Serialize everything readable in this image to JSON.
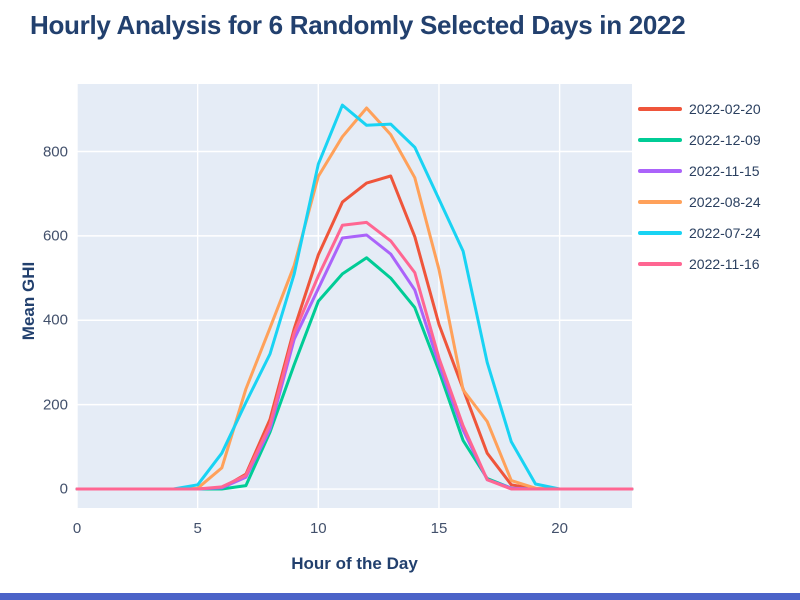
{
  "title": "Hourly Analysis for 6 Randomly Selected Days in 2022",
  "axes": {
    "xlabel": "Hour of the Day",
    "ylabel": "Mean GHI"
  },
  "chart_data": {
    "type": "line",
    "title": "Hourly Analysis for 6 Randomly Selected Days in 2022",
    "xlabel": "Hour of the Day",
    "ylabel": "Mean GHI",
    "x": [
      0,
      1,
      2,
      3,
      4,
      5,
      6,
      7,
      8,
      9,
      10,
      11,
      12,
      13,
      14,
      15,
      16,
      17,
      18,
      19,
      20,
      21,
      22,
      23
    ],
    "xticks": [
      0,
      5,
      10,
      15,
      20
    ],
    "yticks": [
      0,
      200,
      400,
      600,
      800
    ],
    "xlim": [
      0,
      23
    ],
    "ylim": [
      -45,
      960
    ],
    "grid": true,
    "legend_position": "right",
    "plot_bg": "#E5ECF6",
    "grid_color": "#FFFFFF",
    "line_width": 3,
    "series": [
      {
        "name": "2022-02-20",
        "color": "#EF553B",
        "values": [
          0,
          0,
          0,
          0,
          0,
          0,
          2,
          35,
          165,
          380,
          555,
          680,
          725,
          742,
          598,
          390,
          237,
          85,
          10,
          0,
          0,
          0,
          0,
          0
        ]
      },
      {
        "name": "2022-12-09",
        "color": "#00CC96",
        "values": [
          0,
          0,
          0,
          0,
          0,
          0,
          0,
          8,
          135,
          295,
          445,
          510,
          548,
          500,
          430,
          280,
          115,
          25,
          2,
          0,
          0,
          0,
          0,
          0
        ]
      },
      {
        "name": "2022-11-15",
        "color": "#AB63FA",
        "values": [
          0,
          0,
          0,
          0,
          0,
          0,
          3,
          28,
          142,
          355,
          475,
          595,
          602,
          557,
          472,
          295,
          140,
          22,
          2,
          0,
          0,
          0,
          0,
          0
        ]
      },
      {
        "name": "2022-08-24",
        "color": "#FFA15A",
        "values": [
          0,
          0,
          0,
          0,
          0,
          2,
          50,
          237,
          382,
          530,
          741,
          835,
          903,
          840,
          738,
          520,
          235,
          160,
          20,
          2,
          0,
          0,
          0,
          0
        ]
      },
      {
        "name": "2022-07-24",
        "color": "#19D3F3",
        "values": [
          0,
          0,
          0,
          0,
          0,
          10,
          85,
          205,
          320,
          510,
          770,
          910,
          862,
          865,
          810,
          687,
          564,
          300,
          112,
          12,
          0,
          0,
          0,
          0
        ]
      },
      {
        "name": "2022-11-16",
        "color": "#FF6692",
        "values": [
          0,
          0,
          0,
          0,
          0,
          0,
          5,
          32,
          152,
          370,
          505,
          625,
          632,
          588,
          513,
          310,
          150,
          22,
          0,
          0,
          0,
          0,
          0,
          0
        ]
      }
    ]
  },
  "colors": {
    "title_text": "#22406e",
    "axis_title_text": "#22406e",
    "tick_text": "#42506b",
    "legend_text": "#2a3f5f",
    "page_bg": "#ffffff",
    "bottom_bar": "#4b63c8"
  }
}
